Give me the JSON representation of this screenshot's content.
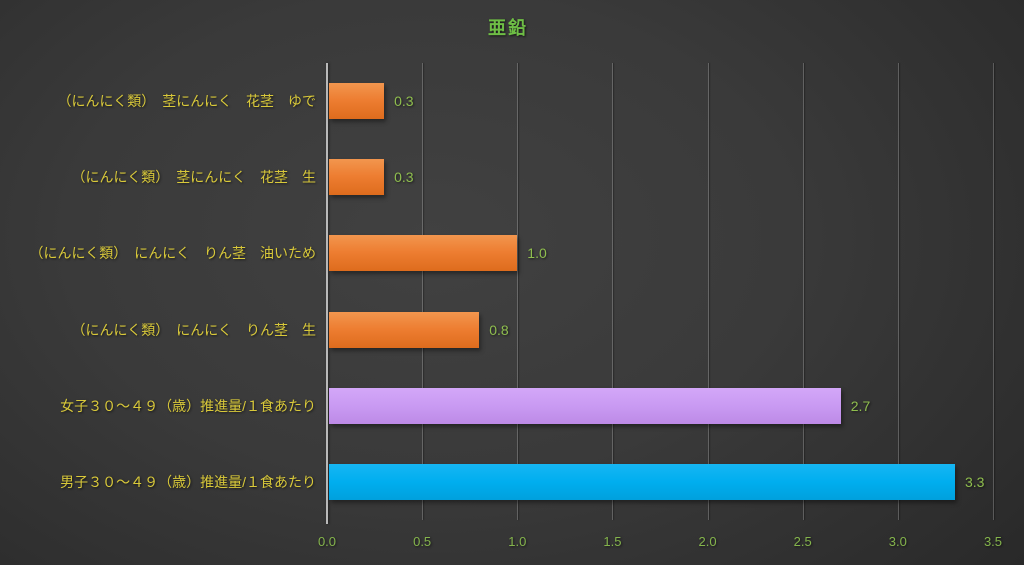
{
  "chart_data": {
    "type": "bar",
    "orientation": "horizontal",
    "title": "亜鉛",
    "categories": [
      "（にんにく類）　茎にんにく　花茎　ゆで",
      "（にんにく類）　茎にんにく　花茎　生",
      "（にんにく類）　にんにく　りん茎　油いため",
      "（にんにく類）　にんにく　りん茎　生",
      "女子３０～４９（歳）推進量/１食あたり",
      "男子３０～４９（歳）推進量/１食あたり"
    ],
    "values": [
      0.3,
      0.3,
      1.0,
      0.8,
      2.7,
      3.3
    ],
    "value_labels": [
      "0.3",
      "0.3",
      "1.0",
      "0.8",
      "2.7",
      "3.3"
    ],
    "bar_color_keys": [
      "orange",
      "orange",
      "orange",
      "orange",
      "purple",
      "blue"
    ],
    "colors": {
      "orange": "#ED7D31",
      "purple": "#C99AF2",
      "blue": "#00AEEF"
    },
    "text_colors": {
      "title": "#6EBE45",
      "category_labels": "#D9C93A",
      "value_labels": "#8FBE4E",
      "tick_labels": "#84B44C"
    },
    "x_ticks": [
      "0.0",
      "0.5",
      "1.0",
      "1.5",
      "2.0",
      "2.5",
      "3.0",
      "3.5"
    ],
    "xlim": [
      0,
      3.5
    ],
    "xlabel": "",
    "ylabel": "",
    "grid": true,
    "legend": false,
    "background": "dark-gray-gradient"
  }
}
